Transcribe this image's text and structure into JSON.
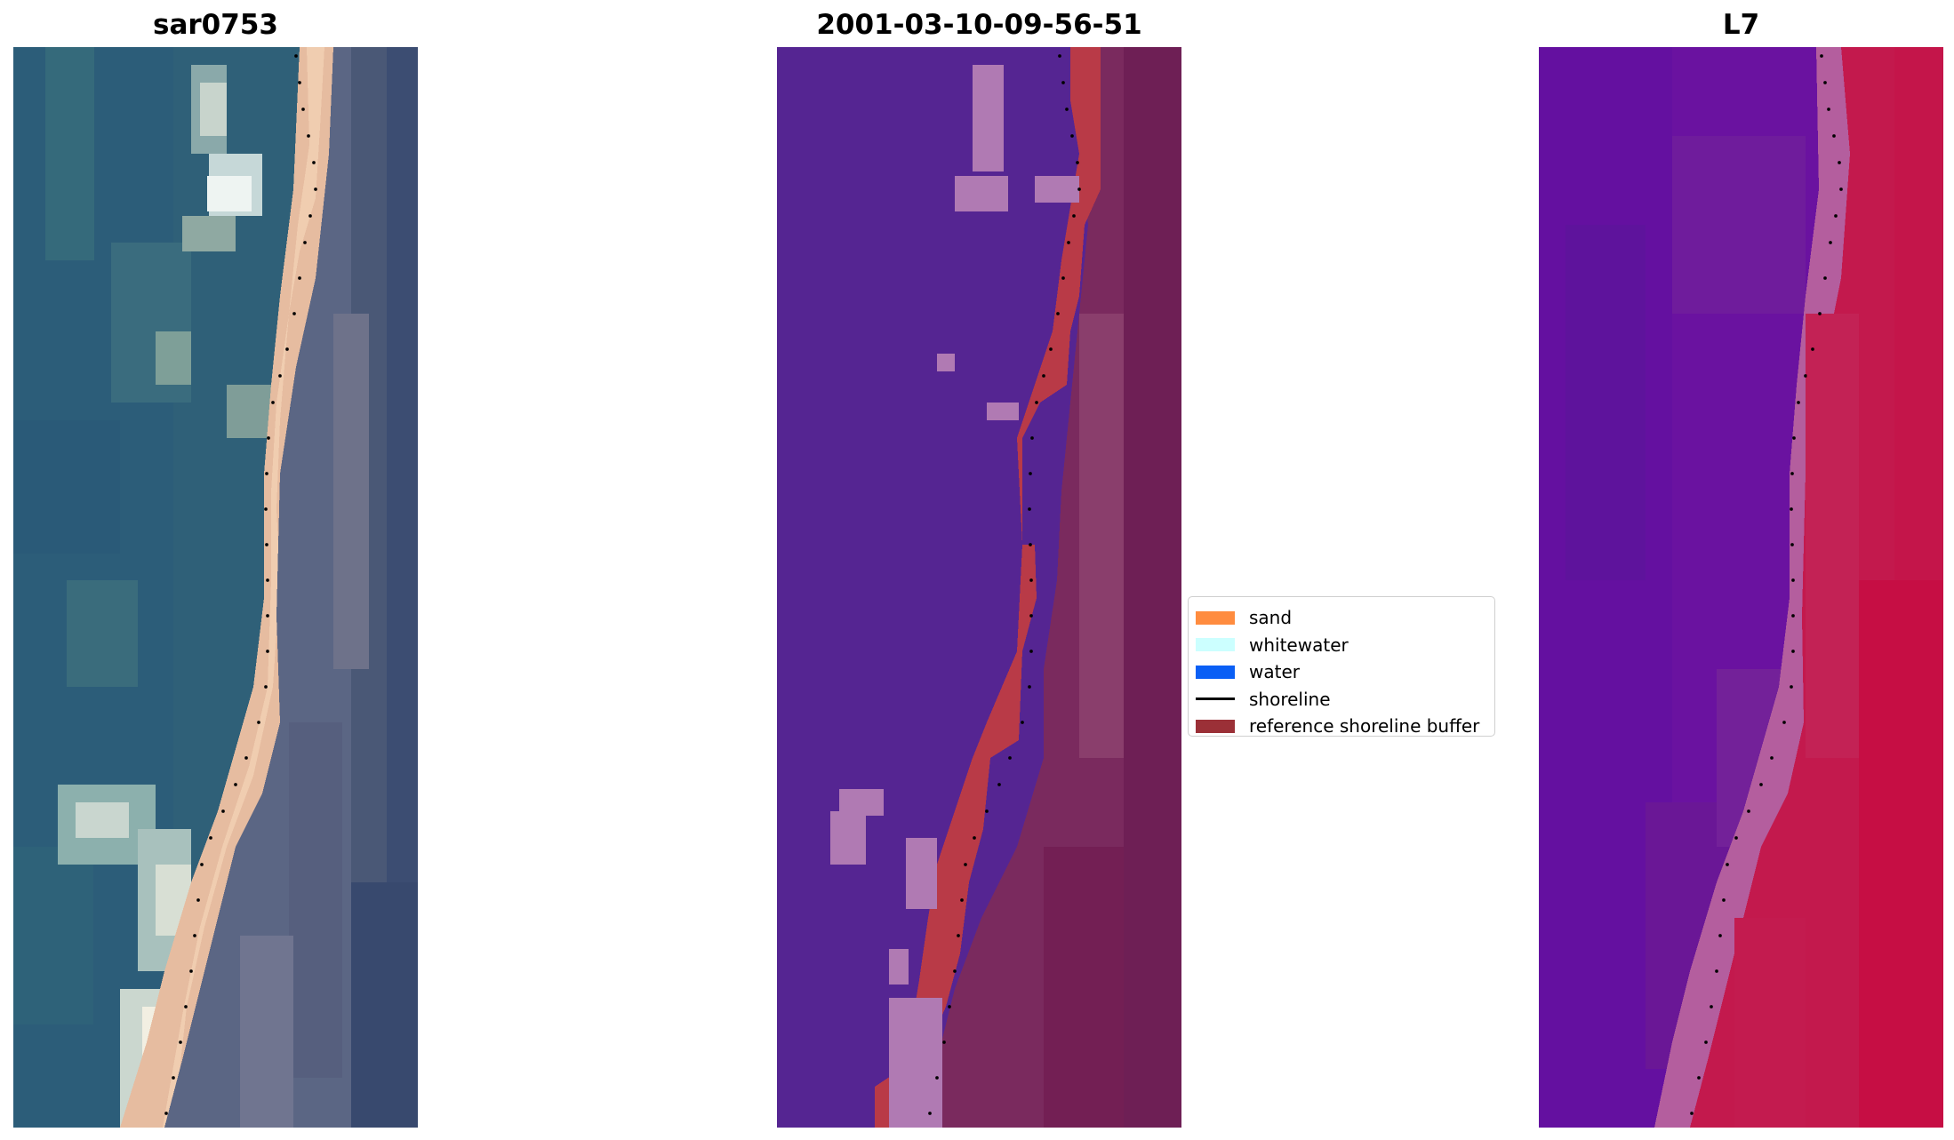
{
  "panels": {
    "rgb": {
      "title": "sar0753"
    },
    "classification": {
      "title": "2001-03-10-09-56-51"
    },
    "index": {
      "title": "L7"
    }
  },
  "legend": {
    "items": [
      {
        "label": "sand",
        "kind": "patch",
        "color": "#ff8c3f"
      },
      {
        "label": "whitewater",
        "kind": "patch",
        "color": "#ccffff"
      },
      {
        "label": "water",
        "kind": "patch",
        "color": "#0a5ff5"
      },
      {
        "label": "shoreline",
        "kind": "line",
        "color": "#000000"
      },
      {
        "label": "reference shoreline buffer",
        "kind": "patch",
        "color": "#9b3037"
      }
    ]
  },
  "colors": {
    "rgb_water": "#2e5f7a",
    "rgb_sand": "#e7bda0",
    "rgb_land": "#3d5775",
    "class_water": "#552592",
    "class_whitewater": "#b07ab3",
    "class_buffer": "#b93a47",
    "class_land": "#7a2256",
    "index_water": "#6a12a0",
    "index_transition": "#b8609c",
    "index_land": "#c51548"
  }
}
